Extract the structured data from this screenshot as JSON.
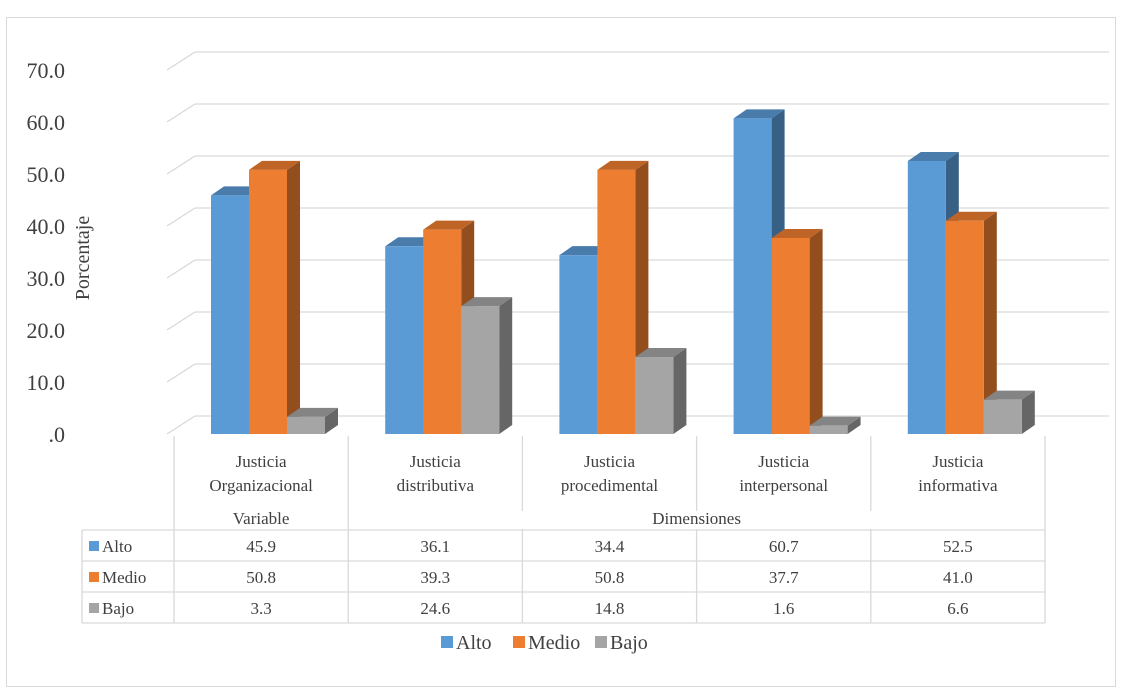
{
  "colors": {
    "Alto": "#5b9bd5",
    "Medio": "#ed7d31",
    "Bajo": "#a5a5a5"
  },
  "chart_data": {
    "type": "bar",
    "style": "3d-clustered-column",
    "ylabel": "Porcentaje",
    "xlabel": "",
    "ylim": [
      0,
      70
    ],
    "ytick_labels": [
      ".0",
      "10.0",
      "20.0",
      "30.0",
      "40.0",
      "50.0",
      "60.0",
      "70.0"
    ],
    "categories": [
      [
        "Justicia",
        "Organizacional"
      ],
      [
        "Justicia",
        "distributiva"
      ],
      [
        "Justicia",
        "procedimental"
      ],
      [
        "Justicia",
        "interpersonal"
      ],
      [
        "Justicia",
        "informativa"
      ]
    ],
    "groups": [
      {
        "label": "Variable",
        "categories": 1
      },
      {
        "label": "Dimensiones",
        "categories": 4
      }
    ],
    "series": [
      {
        "name": "Alto",
        "values": [
          45.9,
          36.1,
          34.4,
          60.7,
          52.5
        ]
      },
      {
        "name": "Medio",
        "values": [
          50.8,
          39.3,
          50.8,
          37.7,
          41.0
        ]
      },
      {
        "name": "Bajo",
        "values": [
          3.3,
          24.6,
          14.8,
          1.6,
          6.6
        ]
      }
    ],
    "table_values": [
      [
        "45.9",
        "36.1",
        "34.4",
        "60.7",
        "52.5"
      ],
      [
        "50.8",
        "39.3",
        "50.8",
        "37.7",
        "41.0"
      ],
      [
        "3.3",
        "24.6",
        "14.8",
        "1.6",
        "6.6"
      ]
    ],
    "legend": {
      "position": "bottom",
      "entries": [
        "Alto",
        "Medio",
        "Bajo"
      ]
    },
    "grid": true
  }
}
